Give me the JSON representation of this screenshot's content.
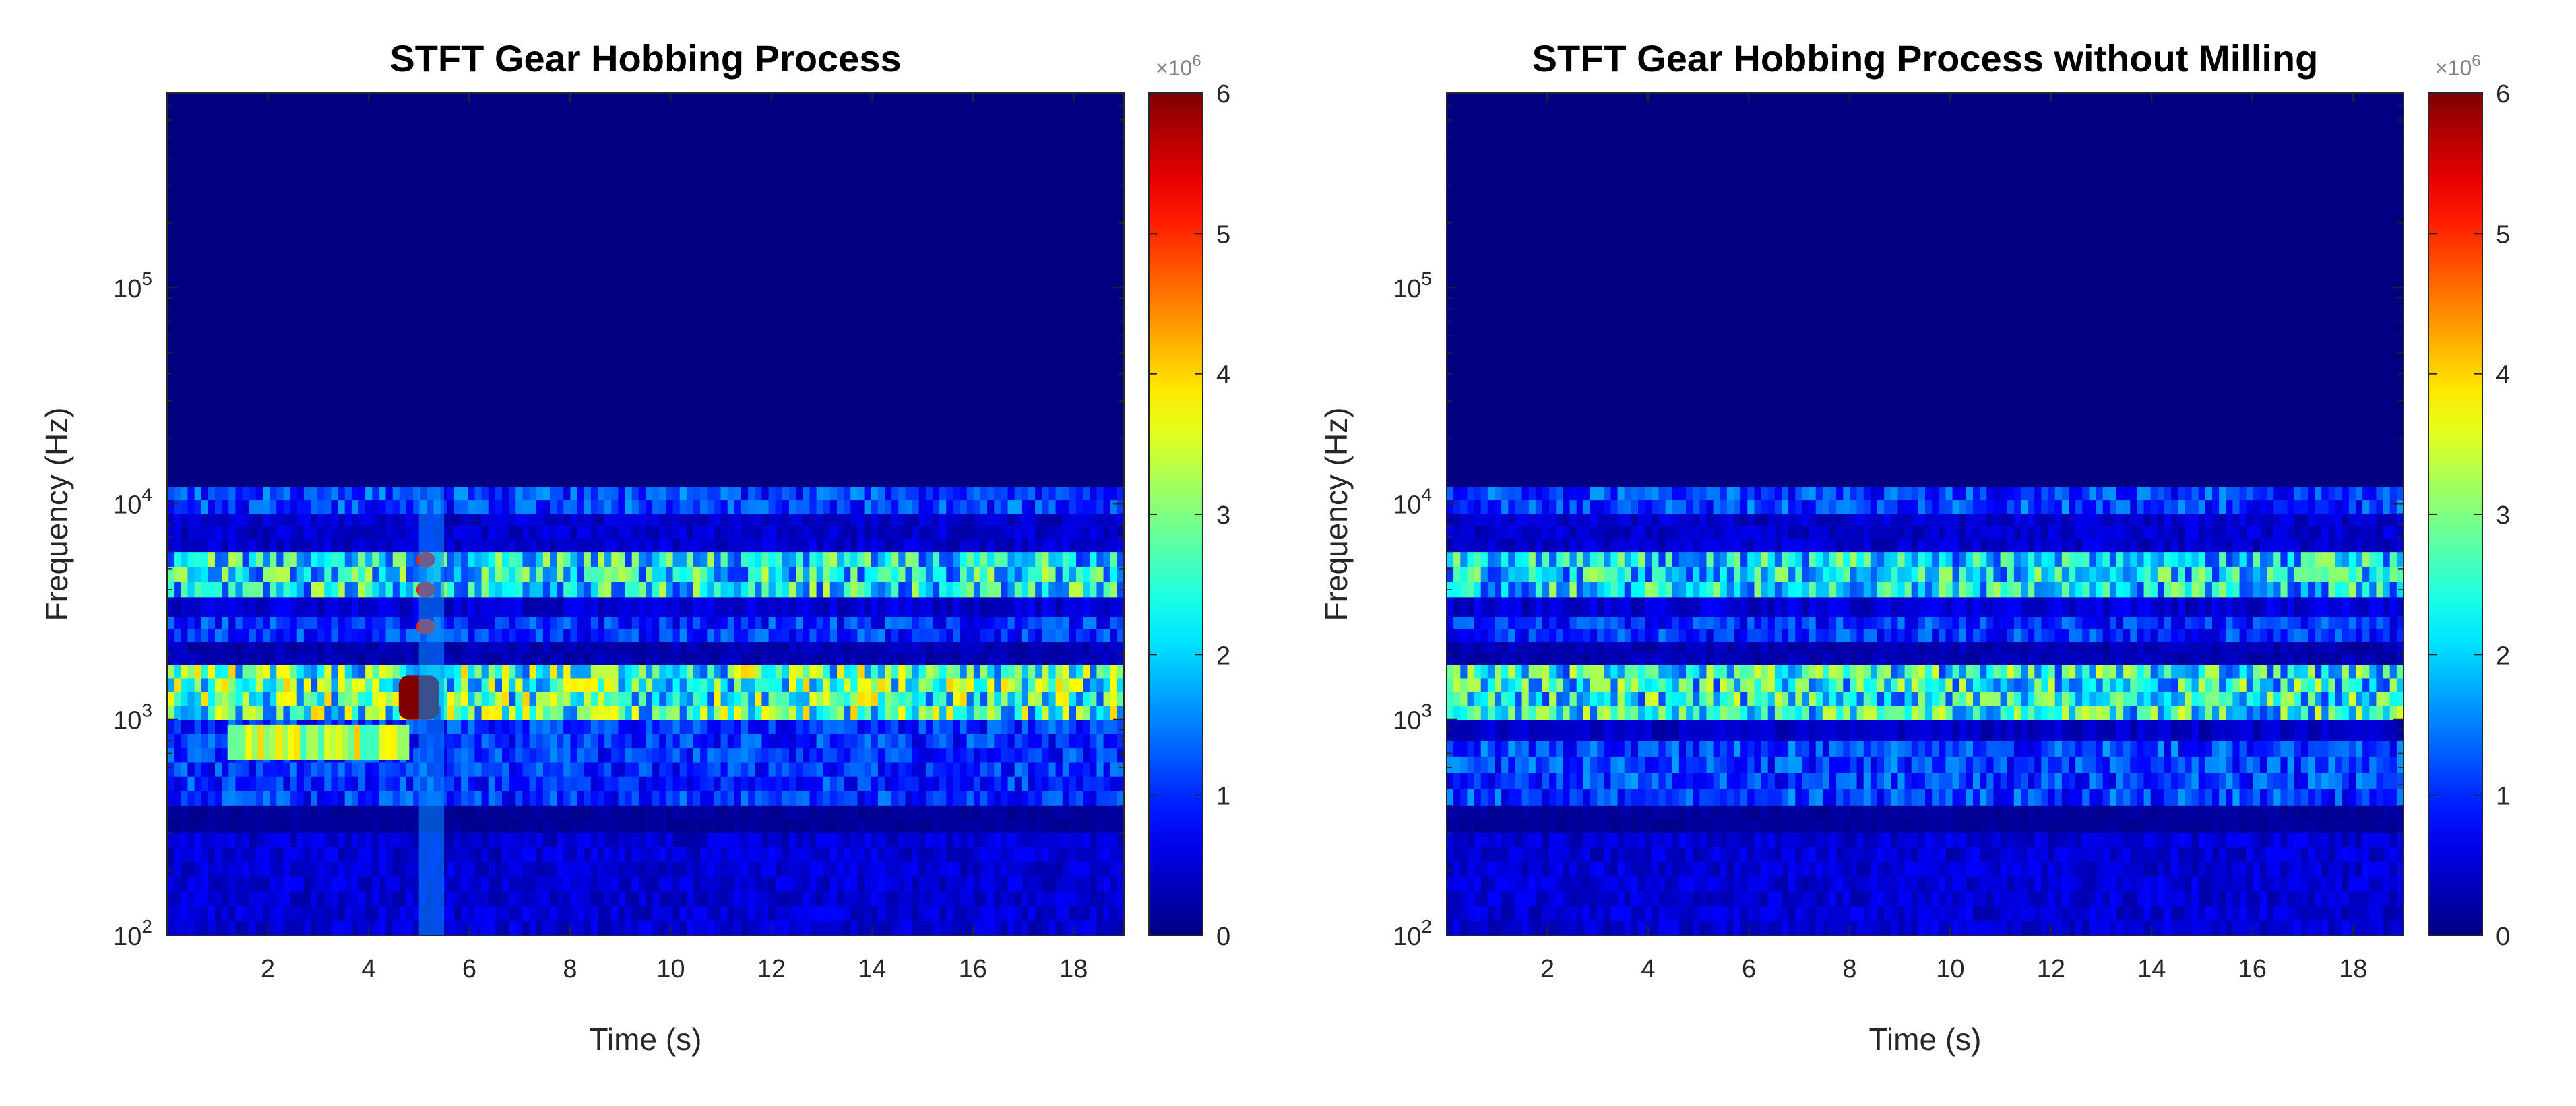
{
  "chart_data": [
    {
      "type": "heatmap",
      "title": "STFT Gear Hobbing Process",
      "xlabel": "Time (s)",
      "ylabel": "Frequency (Hz)",
      "xlim": [
        0,
        19
      ],
      "ylim": [
        100,
        800000
      ],
      "yscale": "log",
      "x_ticks": [
        2,
        4,
        6,
        8,
        10,
        12,
        14,
        16,
        18
      ],
      "x_tick_labels": [
        "2",
        "4",
        "6",
        "8",
        "10",
        "12",
        "14",
        "16",
        "18"
      ],
      "y_ticks": [
        100,
        1000,
        10000,
        100000
      ],
      "y_tick_labels": [
        {
          "base": "10",
          "exp": "2"
        },
        {
          "base": "10",
          "exp": "3"
        },
        {
          "base": "10",
          "exp": "4"
        },
        {
          "base": "10",
          "exp": "5"
        }
      ],
      "colormap": "jet",
      "colorbar": {
        "range": [
          0,
          6
        ],
        "ticks": [
          0,
          1,
          2,
          3,
          4,
          5,
          6
        ],
        "tick_labels": [
          "0",
          "1",
          "2",
          "3",
          "4",
          "5",
          "6"
        ],
        "multiplier": {
          "base": "×10",
          "exp": "6"
        }
      },
      "bands": [
        {
          "f_low": 100,
          "f_high": 300,
          "level": 0.5
        },
        {
          "f_low": 300,
          "f_high": 400,
          "level": 0.15
        },
        {
          "f_low": 400,
          "f_high": 1000,
          "level": 1.0
        },
        {
          "f_low": 1000,
          "f_high": 1800,
          "level": 2.6
        },
        {
          "f_low": 1800,
          "f_high": 2300,
          "level": 0.3
        },
        {
          "f_low": 2300,
          "f_high": 3000,
          "level": 1.0
        },
        {
          "f_low": 3000,
          "f_high": 3700,
          "level": 0.5
        },
        {
          "f_low": 3700,
          "f_high": 6000,
          "level": 2.2
        },
        {
          "f_low": 6000,
          "f_high": 9000,
          "level": 0.45
        },
        {
          "f_low": 9000,
          "f_high": 12000,
          "level": 1.1
        }
      ],
      "features": [
        {
          "name": "low-frequency-patch",
          "t_start": 1.2,
          "t_end": 4.8,
          "f_low": 650,
          "f_high": 950,
          "level": 3.4
        },
        {
          "name": "transient-burst",
          "t_start": 4.6,
          "t_end": 5.4,
          "f_low": 1000,
          "f_high": 1600,
          "level": 6.0
        },
        {
          "name": "vertical-streak",
          "t_start": 5.0,
          "t_end": 5.5,
          "f_low": 100,
          "f_high": 12000,
          "level": 1.6
        }
      ]
    },
    {
      "type": "heatmap",
      "title": "STFT Gear Hobbing Process without Milling",
      "xlabel": "Time (s)",
      "ylabel": "Frequency (Hz)",
      "xlim": [
        0,
        19
      ],
      "ylim": [
        100,
        800000
      ],
      "yscale": "log",
      "x_ticks": [
        2,
        4,
        6,
        8,
        10,
        12,
        14,
        16,
        18
      ],
      "x_tick_labels": [
        "2",
        "4",
        "6",
        "8",
        "10",
        "12",
        "14",
        "16",
        "18"
      ],
      "y_ticks": [
        100,
        1000,
        10000,
        100000
      ],
      "y_tick_labels": [
        {
          "base": "10",
          "exp": "2"
        },
        {
          "base": "10",
          "exp": "3"
        },
        {
          "base": "10",
          "exp": "4"
        },
        {
          "base": "10",
          "exp": "5"
        }
      ],
      "colormap": "jet",
      "colorbar": {
        "range": [
          0,
          6
        ],
        "ticks": [
          0,
          1,
          2,
          3,
          4,
          5,
          6
        ],
        "tick_labels": [
          "0",
          "1",
          "2",
          "3",
          "4",
          "5",
          "6"
        ],
        "multiplier": {
          "base": "×10",
          "exp": "6"
        }
      },
      "bands": [
        {
          "f_low": 100,
          "f_high": 300,
          "level": 0.5
        },
        {
          "f_low": 300,
          "f_high": 400,
          "level": 0.15
        },
        {
          "f_low": 400,
          "f_high": 800,
          "level": 1.1
        },
        {
          "f_low": 800,
          "f_high": 1000,
          "level": 0.4
        },
        {
          "f_low": 1000,
          "f_high": 1800,
          "level": 2.3
        },
        {
          "f_low": 1800,
          "f_high": 2300,
          "level": 0.3
        },
        {
          "f_low": 2300,
          "f_high": 3000,
          "level": 1.0
        },
        {
          "f_low": 3000,
          "f_high": 3700,
          "level": 0.5
        },
        {
          "f_low": 3700,
          "f_high": 6000,
          "level": 2.1
        },
        {
          "f_low": 6000,
          "f_high": 9000,
          "level": 0.45
        },
        {
          "f_low": 9000,
          "f_high": 12000,
          "level": 1.1
        }
      ],
      "features": []
    }
  ]
}
